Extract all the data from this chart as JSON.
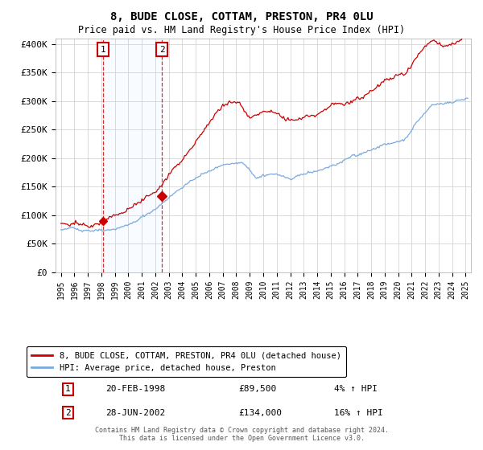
{
  "title": "8, BUDE CLOSE, COTTAM, PRESTON, PR4 0LU",
  "subtitle": "Price paid vs. HM Land Registry's House Price Index (HPI)",
  "legend_line1": "8, BUDE CLOSE, COTTAM, PRESTON, PR4 0LU (detached house)",
  "legend_line2": "HPI: Average price, detached house, Preston",
  "transaction1_date": "20-FEB-1998",
  "transaction1_price": "£89,500",
  "transaction1_hpi": "4% ↑ HPI",
  "transaction1_year": 1998.13,
  "transaction1_value": 89500,
  "transaction2_date": "28-JUN-2002",
  "transaction2_price": "£134,000",
  "transaction2_hpi": "16% ↑ HPI",
  "transaction2_year": 2002.49,
  "transaction2_value": 134000,
  "footer_line1": "Contains HM Land Registry data © Crown copyright and database right 2024.",
  "footer_line2": "This data is licensed under the Open Government Licence v3.0.",
  "ylim": [
    0,
    410000
  ],
  "yticks": [
    0,
    50000,
    100000,
    150000,
    200000,
    250000,
    300000,
    350000,
    400000
  ],
  "ytick_labels": [
    "£0",
    "£50K",
    "£100K",
    "£150K",
    "£200K",
    "£250K",
    "£300K",
    "£350K",
    "£400K"
  ],
  "red_color": "#cc0000",
  "blue_color": "#7aaadd",
  "grid_color": "#cccccc",
  "shade_color": "#ddeeff"
}
